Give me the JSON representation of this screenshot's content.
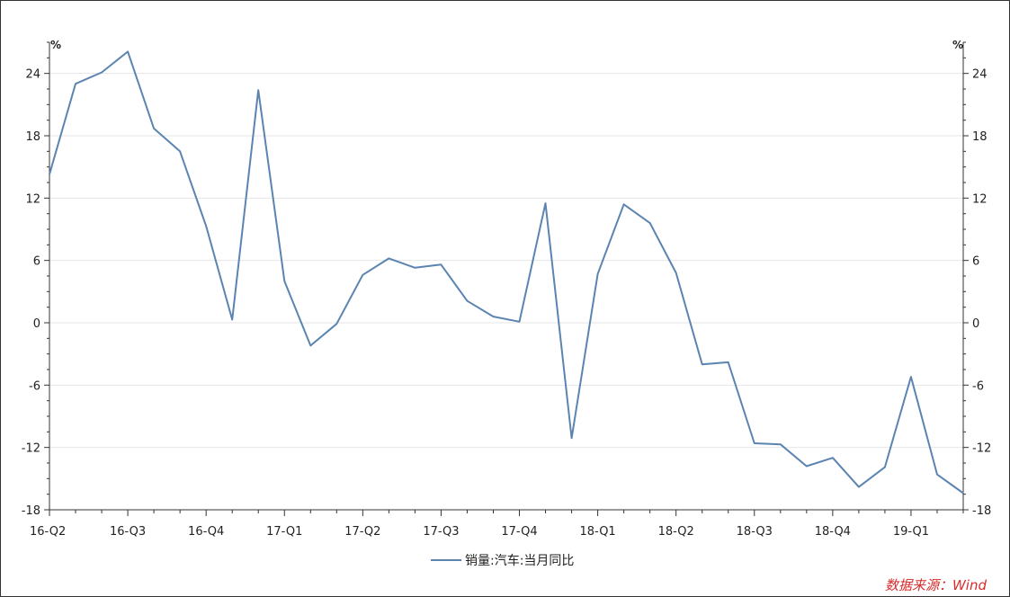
{
  "chart_data": {
    "type": "line",
    "y_unit_left": "%",
    "y_unit_right": "%",
    "ylim": [
      -18,
      27
    ],
    "y_ticks": [
      -18,
      -12,
      -6,
      0,
      6,
      12,
      18,
      24
    ],
    "y_tick_labels": [
      "-18",
      "-12",
      "-6",
      "0",
      "6",
      "12",
      "18",
      "24"
    ],
    "x_tick_labels": [
      "16-Q2",
      "16-Q3",
      "16-Q4",
      "17-Q1",
      "17-Q2",
      "17-Q3",
      "17-Q4",
      "18-Q1",
      "18-Q2",
      "18-Q3",
      "18-Q4",
      "19-Q1"
    ],
    "grid": "horizontal-light",
    "legend_position": "bottom-center",
    "series": [
      {
        "name": "销量:汽车:当月同比",
        "color": "#5b84b1",
        "values": [
          14.3,
          23.0,
          24.1,
          26.1,
          18.7,
          16.5,
          9.3,
          0.3,
          22.4,
          4.0,
          -2.2,
          -0.1,
          4.6,
          6.2,
          5.3,
          5.6,
          2.1,
          0.6,
          0.1,
          11.5,
          -11.1,
          4.7,
          11.4,
          9.6,
          4.8,
          -4.0,
          -3.8,
          -11.6,
          -11.7,
          -13.8,
          -13.0,
          -15.8,
          -13.9,
          -5.2,
          -14.6,
          -16.4
        ]
      }
    ]
  },
  "footer": {
    "source": "数据来源：Wind"
  }
}
